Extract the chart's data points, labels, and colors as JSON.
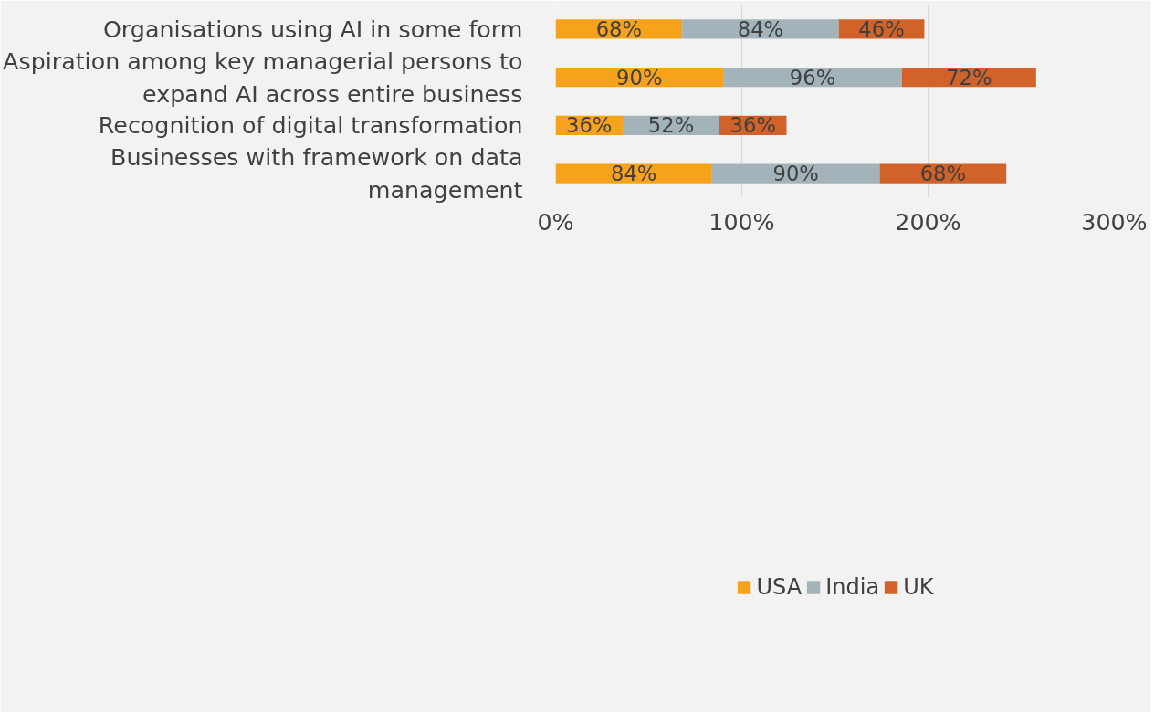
{
  "chart_data": {
    "type": "bar",
    "orientation": "horizontal",
    "stacked": true,
    "categories": [
      "Organisations using AI in some form",
      "Aspiration among key managerial persons to expand AI across entire business",
      "Recognition of digital transformation",
      "Businesses with framework on data management"
    ],
    "series": [
      {
        "name": "USA",
        "color": "#f7a21b",
        "values": [
          68,
          90,
          36,
          84
        ],
        "value_labels": [
          "68%",
          "90%",
          "36%",
          "84%"
        ]
      },
      {
        "name": "India",
        "color": "#a2b4ba",
        "values": [
          84,
          96,
          52,
          90
        ],
        "value_labels": [
          "84%",
          "96%",
          "52%",
          "90%"
        ]
      },
      {
        "name": "UK",
        "color": "#d0622a",
        "values": [
          46,
          72,
          36,
          68
        ],
        "value_labels": [
          "46%",
          "72%",
          "36%",
          "68%"
        ]
      }
    ],
    "xlim": [
      0,
      300
    ],
    "xticks": [
      {
        "value": 0,
        "label": "0%"
      },
      {
        "value": 100,
        "label": "100%"
      },
      {
        "value": 200,
        "label": "200%"
      },
      {
        "value": 300,
        "label": "300%"
      }
    ],
    "grid": "x",
    "legend": "bottom"
  }
}
